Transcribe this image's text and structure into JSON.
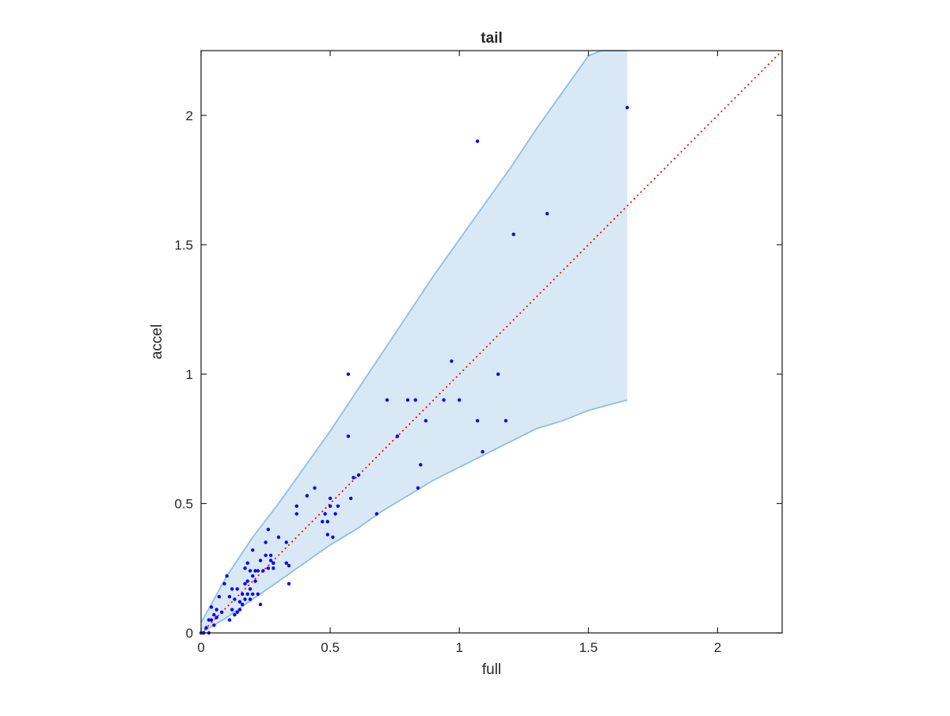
{
  "chart_data": {
    "type": "scatter",
    "title": "tail",
    "xlabel": "full",
    "ylabel": "accel",
    "xlim": [
      0,
      2.25
    ],
    "ylim": [
      0,
      2.25
    ],
    "xticks": [
      0,
      0.5,
      1,
      1.5,
      2
    ],
    "yticks": [
      0,
      0.5,
      1,
      1.5,
      2
    ],
    "xtick_labels": [
      "0",
      "0.5",
      "1",
      "1.5",
      "2"
    ],
    "ytick_labels": [
      "0",
      "0.5",
      "1",
      "1.5",
      "2"
    ],
    "grid": false,
    "colors": {
      "points": "#0000ff",
      "reference_line": "#ff0000",
      "band_fill": "#d9e8f5",
      "band_edge": "#8dbfe3",
      "axes": "#262626"
    },
    "reference_line": {
      "style": "dotted",
      "x": [
        0,
        2.25
      ],
      "y": [
        0,
        2.25
      ]
    },
    "band": {
      "upper": {
        "x": [
          0,
          0.05,
          0.1,
          0.2,
          0.3,
          0.4,
          0.5,
          0.6,
          0.7,
          0.8,
          0.9,
          1.0,
          1.1,
          1.2,
          1.3,
          1.4,
          1.5,
          1.55,
          1.65
        ],
        "y": [
          0.04,
          0.13,
          0.22,
          0.37,
          0.5,
          0.64,
          0.78,
          0.93,
          1.08,
          1.23,
          1.38,
          1.52,
          1.66,
          1.8,
          1.95,
          2.09,
          2.23,
          2.25,
          2.25
        ]
      },
      "lower": {
        "x": [
          0,
          0.1,
          0.2,
          0.3,
          0.4,
          0.5,
          0.6,
          0.7,
          0.8,
          0.9,
          1.0,
          1.1,
          1.2,
          1.3,
          1.4,
          1.5,
          1.65
        ],
        "y": [
          0,
          0.06,
          0.13,
          0.2,
          0.27,
          0.34,
          0.4,
          0.47,
          0.53,
          0.59,
          0.64,
          0.69,
          0.74,
          0.79,
          0.82,
          0.86,
          0.9
        ]
      }
    },
    "series": [
      {
        "x": [
          0.0,
          0.01,
          0.02,
          0.03,
          0.03,
          0.04,
          0.04,
          0.05,
          0.05,
          0.06,
          0.06,
          0.07,
          0.08,
          0.09,
          0.1,
          0.11,
          0.11,
          0.12,
          0.12,
          0.13,
          0.13,
          0.14,
          0.14,
          0.15,
          0.15,
          0.16,
          0.16,
          0.17,
          0.17,
          0.17,
          0.18,
          0.18,
          0.18,
          0.19,
          0.19,
          0.19,
          0.2,
          0.2,
          0.2,
          0.21,
          0.21,
          0.22,
          0.22,
          0.23,
          0.23,
          0.24,
          0.25,
          0.25,
          0.26,
          0.26,
          0.27,
          0.27,
          0.28,
          0.28,
          0.3,
          0.33,
          0.33,
          0.34,
          0.34,
          0.37,
          0.37,
          0.41,
          0.44,
          0.47,
          0.48,
          0.49,
          0.49,
          0.5,
          0.5,
          0.51,
          0.52,
          0.53,
          0.57,
          0.57,
          0.58,
          0.59,
          0.61,
          0.68,
          0.72,
          0.76,
          0.8,
          0.83,
          0.84,
          0.85,
          0.87,
          0.94,
          0.97,
          1.0,
          1.07,
          1.07,
          1.09,
          1.15,
          1.18,
          1.21,
          1.34,
          1.65
        ],
        "y": [
          0.0,
          0.0,
          0.02,
          0.05,
          0.0,
          0.05,
          0.1,
          0.03,
          0.07,
          0.06,
          0.09,
          0.14,
          0.08,
          0.19,
          0.22,
          0.14,
          0.05,
          0.17,
          0.09,
          0.13,
          0.07,
          0.17,
          0.08,
          0.12,
          0.09,
          0.15,
          0.11,
          0.19,
          0.25,
          0.13,
          0.2,
          0.15,
          0.27,
          0.13,
          0.24,
          0.17,
          0.32,
          0.15,
          0.22,
          0.2,
          0.24,
          0.24,
          0.15,
          0.11,
          0.28,
          0.24,
          0.3,
          0.35,
          0.25,
          0.4,
          0.28,
          0.3,
          0.25,
          0.27,
          0.37,
          0.35,
          0.27,
          0.19,
          0.26,
          0.49,
          0.46,
          0.53,
          0.56,
          0.43,
          0.46,
          0.43,
          0.38,
          0.49,
          0.52,
          0.37,
          0.46,
          0.49,
          1.0,
          0.76,
          0.52,
          0.6,
          0.61,
          0.46,
          0.9,
          0.76,
          0.9,
          0.9,
          0.56,
          0.65,
          0.82,
          0.9,
          1.05,
          0.9,
          1.9,
          0.82,
          0.7,
          1.0,
          0.82,
          1.54,
          1.62,
          2.03
        ]
      }
    ]
  }
}
